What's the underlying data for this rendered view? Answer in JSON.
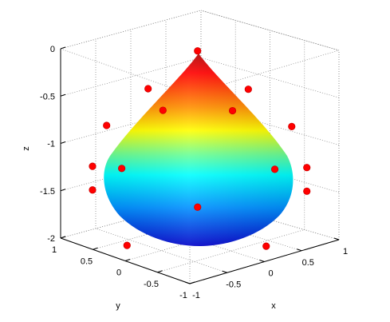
{
  "chart_data": {
    "type": "surface3d",
    "title": "",
    "xlabel": "x",
    "ylabel": "y",
    "zlabel": "z",
    "xlim": [
      -1,
      1
    ],
    "ylim": [
      -1,
      1
    ],
    "zlim": [
      -2,
      0
    ],
    "x_ticks": [
      "-1",
      "-0.5",
      "0",
      "0.5",
      "1"
    ],
    "y_ticks": [
      "1",
      "0.5",
      "0",
      "-0.5",
      "-1"
    ],
    "z_ticks": [
      "0",
      "-0.5",
      "-1",
      "-1.5",
      "-2"
    ],
    "grid": true,
    "colormap": "jet",
    "marker_color": "#ff0000",
    "surface": "cone apex at (0,0,0) widening to a unit rounded bowl, bottom near z = -2",
    "markers": [
      {
        "x": 0,
        "y": 0,
        "z": 0
      },
      {
        "x": 0.42,
        "y": -0.3,
        "z": -0.43
      },
      {
        "x": -0.3,
        "y": 0.42,
        "z": -0.43
      },
      {
        "x": 0.25,
        "y": -0.25,
        "z": -0.63
      },
      {
        "x": -0.25,
        "y": 0.25,
        "z": -0.63
      },
      {
        "x": 0.78,
        "y": -0.55,
        "z": -0.85
      },
      {
        "x": -0.55,
        "y": 0.78,
        "z": -0.85
      },
      {
        "x": 0.55,
        "y": -0.55,
        "z": -1.25
      },
      {
        "x": -0.55,
        "y": 0.55,
        "z": -1.25
      },
      {
        "x": 0.92,
        "y": -0.62,
        "z": -1.3
      },
      {
        "x": -0.62,
        "y": 0.92,
        "z": -1.3
      },
      {
        "x": 0.92,
        "y": -0.62,
        "z": -1.55
      },
      {
        "x": -0.62,
        "y": 0.92,
        "z": -1.55
      },
      {
        "x": 0.0,
        "y": 0.0,
        "z": -1.65
      },
      {
        "x": 0.25,
        "y": -0.75,
        "z": -1.95
      },
      {
        "x": -0.75,
        "y": 0.25,
        "z": -1.95
      }
    ]
  }
}
